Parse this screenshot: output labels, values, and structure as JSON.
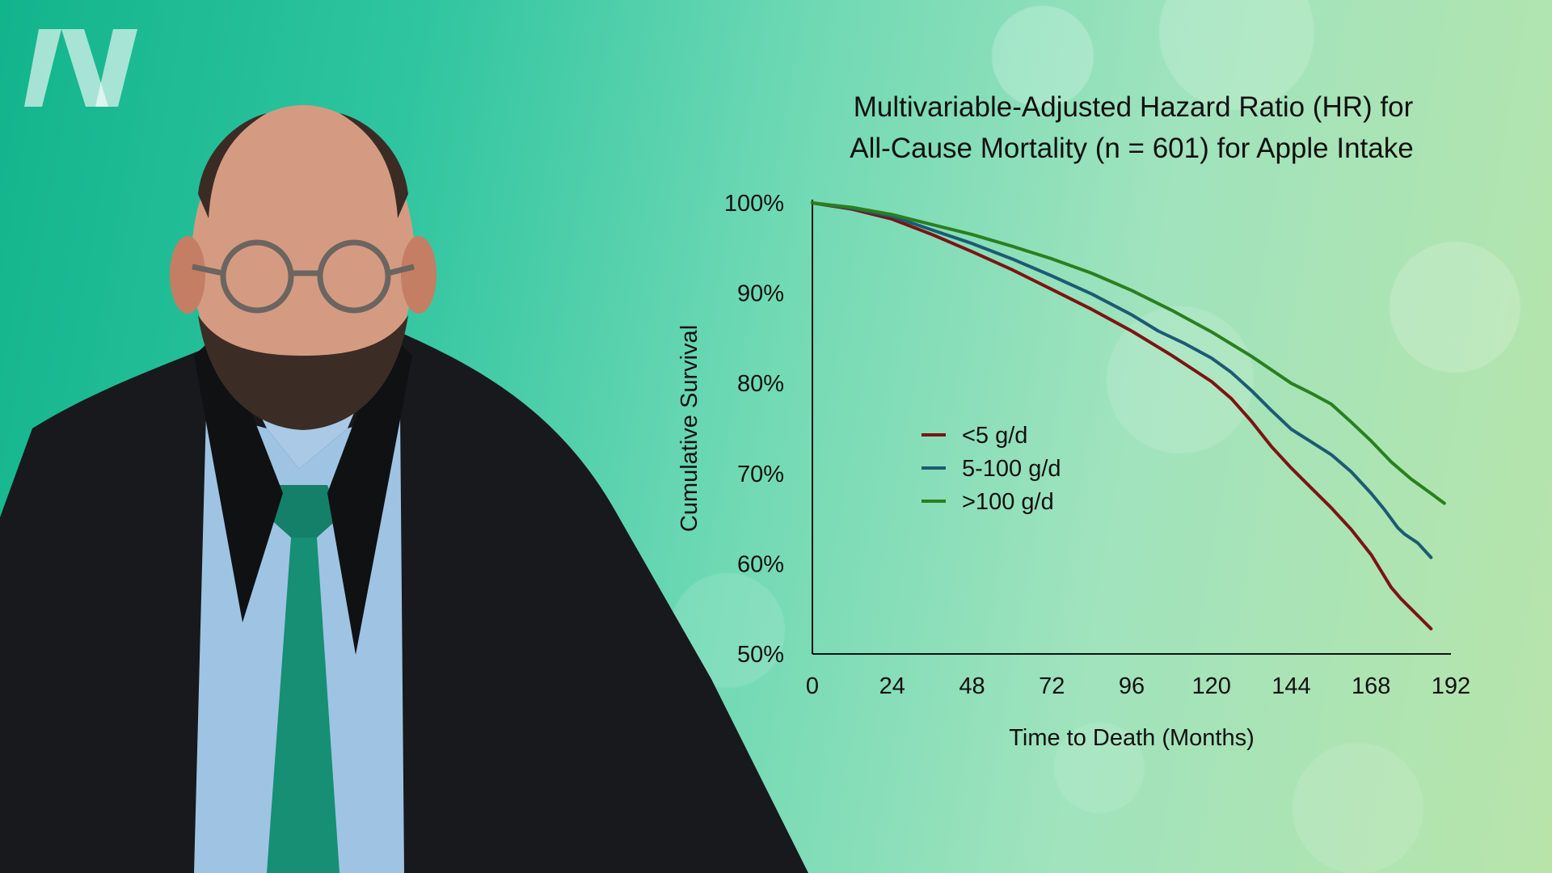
{
  "chart_data": {
    "type": "line",
    "title_lines": [
      "Multivariable-Adjusted Hazard Ratio (HR) for",
      "All-Cause Mortality (n = 601) for Apple Intake"
    ],
    "xlabel": "Time to Death (Months)",
    "ylabel": "Cumulative Survival",
    "xlim": [
      0,
      192
    ],
    "ylim": [
      50,
      100
    ],
    "x_ticks": [
      "0",
      "24",
      "48",
      "72",
      "96",
      "120",
      "144",
      "168",
      "192"
    ],
    "y_ticks": [
      "100%",
      "90%",
      "80%",
      "70%",
      "60%",
      "50%"
    ],
    "grid": false,
    "legend_position": "center-left",
    "series": [
      {
        "name": "<5 g/d",
        "color": "#7b1414",
        "points": [
          [
            0,
            100
          ],
          [
            12,
            99.3
          ],
          [
            24,
            98.2
          ],
          [
            36,
            96.5
          ],
          [
            48,
            94.6
          ],
          [
            60,
            92.6
          ],
          [
            72,
            90.4
          ],
          [
            84,
            88.2
          ],
          [
            96,
            85.8
          ],
          [
            108,
            83.1
          ],
          [
            120,
            80.2
          ],
          [
            126,
            78.3
          ],
          [
            132,
            75.8
          ],
          [
            138,
            73.0
          ],
          [
            144,
            70.6
          ],
          [
            150,
            68.4
          ],
          [
            156,
            66.2
          ],
          [
            162,
            63.8
          ],
          [
            168,
            61.0
          ],
          [
            171,
            59.2
          ],
          [
            174,
            57.4
          ],
          [
            177,
            56.1
          ],
          [
            180,
            55.0
          ],
          [
            183,
            53.9
          ],
          [
            186,
            52.8
          ]
        ]
      },
      {
        "name": "5-100 g/d",
        "color": "#1d5a73",
        "points": [
          [
            0,
            100
          ],
          [
            12,
            99.4
          ],
          [
            24,
            98.5
          ],
          [
            36,
            97.0
          ],
          [
            48,
            95.5
          ],
          [
            60,
            93.8
          ],
          [
            72,
            91.9
          ],
          [
            84,
            89.9
          ],
          [
            96,
            87.6
          ],
          [
            104,
            85.8
          ],
          [
            112,
            84.4
          ],
          [
            120,
            82.8
          ],
          [
            126,
            81.2
          ],
          [
            132,
            79.2
          ],
          [
            138,
            77.0
          ],
          [
            144,
            74.9
          ],
          [
            150,
            73.5
          ],
          [
            156,
            72.1
          ],
          [
            162,
            70.2
          ],
          [
            168,
            67.8
          ],
          [
            172,
            66.0
          ],
          [
            176,
            64.0
          ],
          [
            178,
            63.3
          ],
          [
            182,
            62.3
          ],
          [
            186,
            60.7
          ]
        ]
      },
      {
        "name": ">100 g/d",
        "color": "#2a7f1f",
        "points": [
          [
            0,
            100
          ],
          [
            12,
            99.5
          ],
          [
            24,
            98.7
          ],
          [
            36,
            97.6
          ],
          [
            48,
            96.5
          ],
          [
            60,
            95.2
          ],
          [
            72,
            93.8
          ],
          [
            84,
            92.2
          ],
          [
            96,
            90.3
          ],
          [
            108,
            88.1
          ],
          [
            120,
            85.7
          ],
          [
            132,
            83.0
          ],
          [
            144,
            80.0
          ],
          [
            150,
            78.9
          ],
          [
            156,
            77.7
          ],
          [
            162,
            75.7
          ],
          [
            168,
            73.6
          ],
          [
            174,
            71.3
          ],
          [
            180,
            69.4
          ],
          [
            186,
            67.8
          ],
          [
            190,
            66.7
          ]
        ]
      }
    ]
  }
}
